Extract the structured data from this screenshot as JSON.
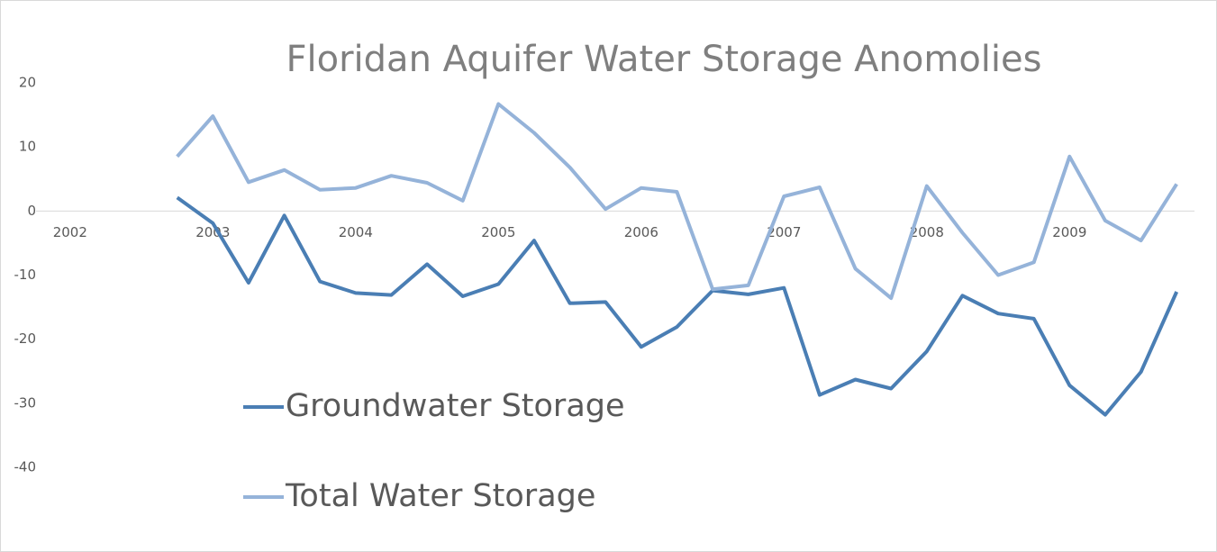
{
  "chart_data": {
    "type": "line",
    "title": "Floridan Aquifer Water Storage Anomolies",
    "categories": [
      "2002",
      null,
      null,
      null,
      "2003",
      null,
      null,
      null,
      "2004",
      null,
      null,
      null,
      "2005",
      null,
      null,
      null,
      "2006",
      null,
      null,
      null,
      "2007",
      null,
      null,
      null,
      "2008",
      null,
      null,
      null,
      "2009",
      null,
      null,
      null
    ],
    "series": [
      {
        "name": "Groundwater Storage",
        "color": "#4a7eb4",
        "values": [
          null,
          null,
          null,
          2.1,
          -1.9,
          -11.2,
          -0.7,
          -11.0,
          -12.8,
          -13.1,
          -8.3,
          -13.3,
          -11.4,
          -4.6,
          -14.4,
          -14.2,
          -21.2,
          -18.1,
          -12.4,
          -13.0,
          -12.0,
          -28.7,
          -26.3,
          -27.7,
          -21.9,
          -13.2,
          -16.0,
          -16.8,
          -27.2,
          -31.8,
          -25.1,
          -12.6
        ]
      },
      {
        "name": "Total Water Storage",
        "color": "#95b3d9",
        "values": [
          null,
          null,
          null,
          8.5,
          14.8,
          4.5,
          6.4,
          3.3,
          3.6,
          5.5,
          4.4,
          1.6,
          16.7,
          12.2,
          6.8,
          0.3,
          3.6,
          3.0,
          -12.2,
          -11.6,
          2.3,
          3.7,
          -9.0,
          -13.6,
          3.9,
          -3.4,
          -10.0,
          -8.0,
          8.5,
          -1.5,
          -4.6,
          4.2
        ]
      }
    ],
    "ylim": [
      -40,
      20
    ],
    "yticks": [
      20,
      10,
      0,
      -10,
      -20,
      -30,
      -40
    ]
  }
}
